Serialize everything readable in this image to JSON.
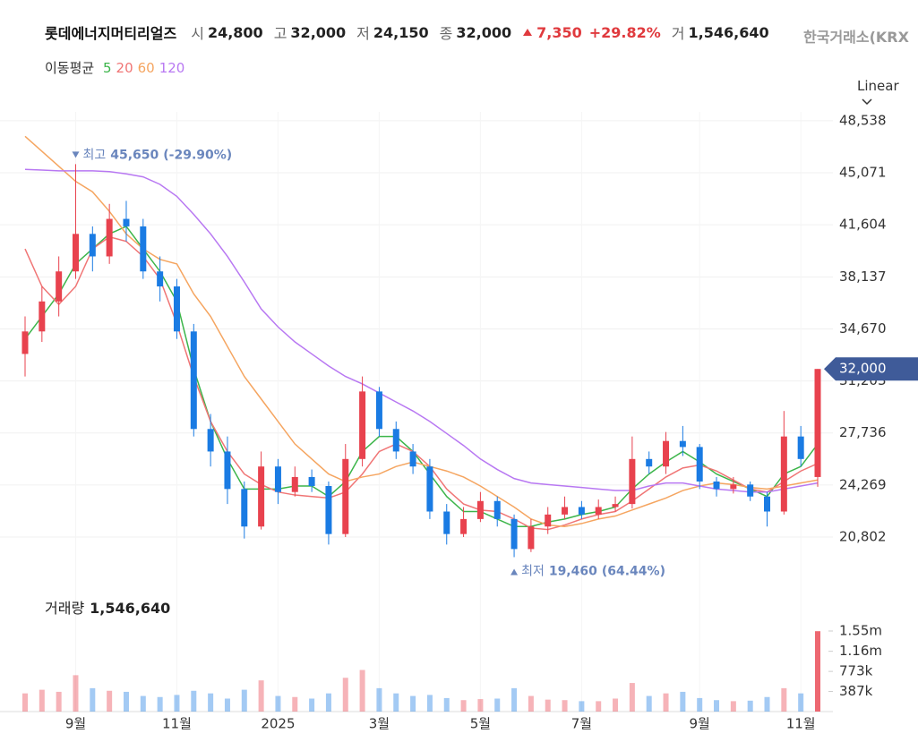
{
  "header": {
    "exchange": "한국거래소(KRX",
    "stats": [
      {
        "label": "시",
        "value": "24,800"
      },
      {
        "label": "고",
        "value": "32,000"
      },
      {
        "label": "저",
        "value": "24,150"
      },
      {
        "label": "종",
        "value": "32,000"
      }
    ],
    "change": "7,350",
    "change_pct": "+29.82%",
    "volume": {
      "label": "거",
      "value": "1,546,640"
    }
  },
  "chart_data": {
    "type": "candlestick",
    "title": "롯데에너지머티리얼즈",
    "scale": "Linear",
    "grid": true,
    "up_color": "#e8424e",
    "down_color": "#1a7be3",
    "open": [
      33000,
      34500,
      36500,
      38500,
      41000,
      39500,
      42000,
      41500,
      38500,
      37500,
      34500,
      28000,
      26500,
      24000,
      21500,
      25500,
      23800,
      24800,
      24200,
      21000,
      26000,
      30500,
      28000,
      26500,
      25500,
      22500,
      21000,
      22000,
      23200,
      22000,
      20000,
      21500,
      22300,
      22800,
      22300,
      22800,
      23000,
      26000,
      25500,
      27200,
      26800,
      24500,
      24000,
      24300,
      23500,
      22500,
      27500,
      24800
    ],
    "high": [
      35500,
      37500,
      39500,
      45650,
      41500,
      43000,
      43200,
      42000,
      39500,
      38000,
      35000,
      29000,
      27500,
      24500,
      26500,
      26000,
      25500,
      25300,
      24500,
      27000,
      31500,
      30800,
      28500,
      27000,
      26000,
      23000,
      22800,
      23800,
      23500,
      22300,
      22000,
      22800,
      23500,
      23200,
      23300,
      23500,
      27500,
      26500,
      27800,
      28200,
      27000,
      24800,
      24800,
      24500,
      23800,
      29200,
      28200,
      32000
    ],
    "low": [
      31500,
      33800,
      35500,
      38000,
      38500,
      39000,
      40500,
      38000,
      36500,
      34000,
      27500,
      25500,
      23000,
      20700,
      21300,
      23000,
      23500,
      23800,
      20300,
      20800,
      25500,
      27500,
      26000,
      25000,
      22000,
      20300,
      20800,
      21800,
      21500,
      19460,
      19800,
      21000,
      22000,
      22000,
      22000,
      22500,
      22700,
      25000,
      25000,
      26200,
      24000,
      23500,
      23700,
      23200,
      21500,
      22300,
      25500,
      24150
    ],
    "close": [
      34500,
      36500,
      38500,
      41000,
      39500,
      42000,
      41500,
      38500,
      37500,
      34500,
      28000,
      26500,
      24000,
      21500,
      25500,
      23800,
      24800,
      24200,
      21000,
      26000,
      30500,
      28000,
      26500,
      25500,
      22500,
      21000,
      22000,
      23200,
      22000,
      20000,
      21500,
      22300,
      22800,
      22300,
      22800,
      23000,
      26000,
      25500,
      27200,
      26800,
      24500,
      24000,
      24300,
      23500,
      22500,
      27500,
      26000,
      32000
    ],
    "volume": [
      350000,
      420000,
      380000,
      700000,
      450000,
      400000,
      380000,
      300000,
      280000,
      320000,
      400000,
      350000,
      250000,
      420000,
      600000,
      300000,
      280000,
      250000,
      350000,
      650000,
      800000,
      450000,
      350000,
      300000,
      320000,
      260000,
      220000,
      240000,
      250000,
      450000,
      300000,
      230000,
      220000,
      200000,
      200000,
      250000,
      550000,
      300000,
      350000,
      380000,
      260000,
      220000,
      200000,
      210000,
      280000,
      450000,
      350000,
      1546640
    ],
    "ylim": [
      17520,
      49130
    ],
    "yticks": [
      {
        "value": 20802,
        "label": "20,802"
      },
      {
        "value": 24269,
        "label": "24,269"
      },
      {
        "value": 27736,
        "label": "27,736"
      },
      {
        "value": 31203,
        "label": "31,203"
      },
      {
        "value": 34670,
        "label": "34,670"
      },
      {
        "value": 38137,
        "label": "38,137"
      },
      {
        "value": 41604,
        "label": "41,604"
      },
      {
        "value": 45071,
        "label": "45,071"
      },
      {
        "value": 48538,
        "label": "48,538"
      }
    ],
    "xticks": [
      {
        "value": 3,
        "label": "9월"
      },
      {
        "value": 9,
        "label": "11월"
      },
      {
        "value": 15,
        "label": "2025"
      },
      {
        "value": 21,
        "label": "3월"
      },
      {
        "value": 27,
        "label": "5월"
      },
      {
        "value": 33,
        "label": "7월"
      },
      {
        "value": 40,
        "label": "9월"
      },
      {
        "value": 46,
        "label": "11월"
      }
    ],
    "moving_average": {
      "label": "이동평균",
      "series": [
        {
          "name": "5",
          "color": "#3cb54a",
          "values": [
            34000,
            35500,
            37000,
            39000,
            40000,
            41000,
            41500,
            40000,
            38500,
            36500,
            32000,
            28500,
            26000,
            24000,
            24000,
            24000,
            24200,
            24200,
            23500,
            24500,
            26500,
            27500,
            27500,
            26500,
            25000,
            23500,
            22500,
            22500,
            22000,
            21500,
            21500,
            21800,
            22000,
            22300,
            22500,
            22800,
            24000,
            25000,
            25800,
            26500,
            25800,
            25000,
            24500,
            24000,
            23500,
            25000,
            25500,
            27000
          ]
        },
        {
          "name": "20",
          "color": "#f07575",
          "values": [
            40000,
            37500,
            36300,
            37500,
            40000,
            40800,
            40500,
            39500,
            38000,
            35000,
            31500,
            28500,
            26500,
            25000,
            24300,
            23800,
            23600,
            23500,
            23400,
            23800,
            25000,
            26500,
            27000,
            26500,
            25500,
            24000,
            23000,
            22600,
            22500,
            22000,
            21400,
            21300,
            21600,
            22000,
            22300,
            22500,
            23200,
            24000,
            24800,
            25400,
            25600,
            25200,
            24600,
            24000,
            23800,
            24500,
            25200,
            25700
          ]
        },
        {
          "name": "60",
          "color": "#f5a560",
          "values": [
            47500,
            46500,
            45500,
            44500,
            43800,
            42500,
            41000,
            40000,
            39300,
            39000,
            37000,
            35500,
            33500,
            31500,
            30000,
            28500,
            27000,
            26000,
            25000,
            24500,
            24800,
            25000,
            25500,
            25800,
            25500,
            25200,
            24800,
            24200,
            23500,
            22800,
            22000,
            21600,
            21500,
            21700,
            22000,
            22200,
            22600,
            23000,
            23400,
            23900,
            24200,
            24400,
            24300,
            24100,
            24000,
            24200,
            24400,
            24600
          ]
        },
        {
          "name": "120",
          "color": "#b878f2",
          "values": [
            45300,
            45250,
            45200,
            45200,
            45200,
            45150,
            45000,
            44800,
            44300,
            43500,
            42300,
            41000,
            39500,
            37800,
            36000,
            34800,
            33800,
            33000,
            32200,
            31500,
            31000,
            30400,
            29800,
            29200,
            28500,
            27700,
            26900,
            26000,
            25300,
            24700,
            24400,
            24300,
            24200,
            24100,
            24000,
            23900,
            23900,
            24200,
            24400,
            24400,
            24200,
            24000,
            23900,
            23800,
            23800,
            24000,
            24200,
            24400
          ]
        }
      ]
    },
    "annotations": {
      "max": {
        "prefix": "최고",
        "value": 45650,
        "label": "45,650",
        "change": "(-29.90%)"
      },
      "min": {
        "prefix": "최저",
        "value": 19460,
        "label": "19,460",
        "change": "(64.44%)"
      }
    },
    "price_tag": {
      "value": 32000,
      "label": "32,000"
    },
    "volume_panel": {
      "label": "거래량",
      "value_label": "1,546,640",
      "ylim": [
        0,
        2325000
      ],
      "yticks": [
        {
          "value": 387000,
          "label": "387k"
        },
        {
          "value": 773000,
          "label": "773k"
        },
        {
          "value": 1160000,
          "label": "1.16m"
        },
        {
          "value": 1550000,
          "label": "1.55m"
        }
      ]
    }
  }
}
